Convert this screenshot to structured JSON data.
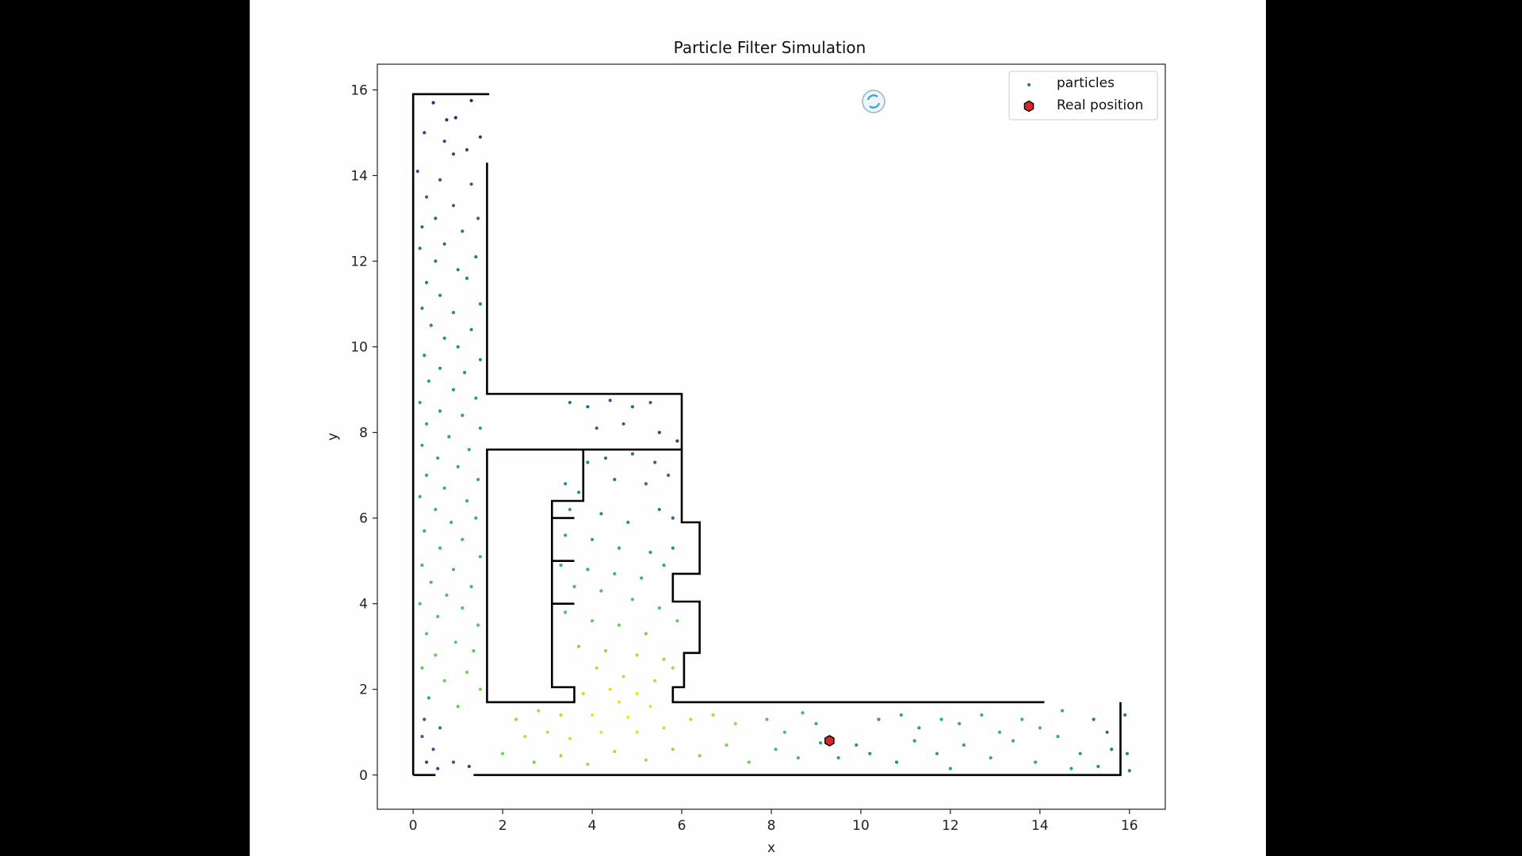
{
  "window": {
    "background": "#000000"
  },
  "colors": {
    "figure_background": "#fefefe",
    "axes_edge": "#222222",
    "walls": "#000000",
    "real_position_fill": "#d62728",
    "real_position_edge": "#000000",
    "legend_particle_marker": "#1f77b4",
    "viridis": [
      "#440154",
      "#3b528b",
      "#21918c",
      "#5ec962",
      "#fde725"
    ]
  },
  "status_icon": "loading-spinner-icon",
  "chart_data": {
    "type": "scatter",
    "title": "Particle Filter Simulation",
    "xlabel": "x",
    "ylabel": "y",
    "xlim": [
      -0.8,
      16.8
    ],
    "ylim": [
      -0.8,
      16.6
    ],
    "xticks": [
      0,
      2,
      4,
      6,
      8,
      10,
      12,
      14,
      16
    ],
    "yticks": [
      0,
      2,
      4,
      6,
      8,
      10,
      12,
      14,
      16
    ],
    "grid": false,
    "legend": {
      "placement": "top-right",
      "entries": [
        "particles",
        "Real position"
      ]
    },
    "particle_color_map": "viridis",
    "walls": [
      [
        [
          0,
          0
        ],
        [
          0,
          15.9
        ],
        [
          1.7,
          15.9
        ]
      ],
      [
        [
          0,
          0
        ],
        [
          0.5,
          0
        ]
      ],
      [
        [
          1.35,
          0
        ],
        [
          15.8,
          0
        ],
        [
          15.8,
          1.7
        ]
      ],
      [
        [
          1.65,
          14.3
        ],
        [
          1.65,
          8.9
        ],
        [
          6.0,
          8.9
        ],
        [
          6.0,
          7.6
        ],
        [
          1.65,
          7.6
        ],
        [
          1.65,
          1.7
        ],
        [
          3.6,
          1.7
        ],
        [
          3.6,
          2.05
        ],
        [
          3.1,
          2.05
        ],
        [
          3.1,
          6.4
        ],
        [
          3.8,
          6.4
        ],
        [
          3.8,
          7.6
        ]
      ],
      [
        [
          3.1,
          6.0
        ],
        [
          3.6,
          6.0
        ]
      ],
      [
        [
          3.1,
          5.0
        ],
        [
          3.6,
          5.0
        ]
      ],
      [
        [
          3.1,
          4.0
        ],
        [
          3.6,
          4.0
        ]
      ],
      [
        [
          6.0,
          7.6
        ],
        [
          6.0,
          5.9
        ],
        [
          6.4,
          5.9
        ],
        [
          6.4,
          4.7
        ],
        [
          5.8,
          4.7
        ],
        [
          5.8,
          4.05
        ],
        [
          6.4,
          4.05
        ],
        [
          6.4,
          2.85
        ],
        [
          6.05,
          2.85
        ],
        [
          6.05,
          2.05
        ],
        [
          5.8,
          2.05
        ],
        [
          5.8,
          1.7
        ],
        [
          14.1,
          1.7
        ]
      ]
    ],
    "real_position": {
      "x": 9.3,
      "y": 0.8
    },
    "particles": [
      [
        0.45,
        15.7,
        0.12
      ],
      [
        0.95,
        15.35,
        0.1
      ],
      [
        1.3,
        15.75,
        0.1
      ],
      [
        0.75,
        15.3,
        0.12
      ],
      [
        1.5,
        14.9,
        0.15
      ],
      [
        0.25,
        15.0,
        0.2
      ],
      [
        0.7,
        14.8,
        0.2
      ],
      [
        1.2,
        14.6,
        0.22
      ],
      [
        0.9,
        14.5,
        0.22
      ],
      [
        0.1,
        14.1,
        0.25
      ],
      [
        0.6,
        13.9,
        0.25
      ],
      [
        1.3,
        13.8,
        0.28
      ],
      [
        0.3,
        13.5,
        0.3
      ],
      [
        0.9,
        13.3,
        0.3
      ],
      [
        1.45,
        13.0,
        0.3
      ],
      [
        0.5,
        13.0,
        0.32
      ],
      [
        0.2,
        12.8,
        0.33
      ],
      [
        1.1,
        12.7,
        0.35
      ],
      [
        0.7,
        12.4,
        0.36
      ],
      [
        0.15,
        12.3,
        0.37
      ],
      [
        1.4,
        12.1,
        0.38
      ],
      [
        0.5,
        12.0,
        0.4
      ],
      [
        1.0,
        11.8,
        0.4
      ],
      [
        0.3,
        11.5,
        0.42
      ],
      [
        1.2,
        11.6,
        0.43
      ],
      [
        0.6,
        11.2,
        0.43
      ],
      [
        1.5,
        11.0,
        0.45
      ],
      [
        0.2,
        10.9,
        0.45
      ],
      [
        0.9,
        10.8,
        0.46
      ],
      [
        0.4,
        10.5,
        0.47
      ],
      [
        1.3,
        10.4,
        0.48
      ],
      [
        0.7,
        10.2,
        0.48
      ],
      [
        1.0,
        10.0,
        0.5
      ],
      [
        0.25,
        9.8,
        0.5
      ],
      [
        1.5,
        9.7,
        0.5
      ],
      [
        0.6,
        9.5,
        0.52
      ],
      [
        1.15,
        9.4,
        0.52
      ],
      [
        0.35,
        9.2,
        0.53
      ],
      [
        0.9,
        9.0,
        0.53
      ],
      [
        1.4,
        8.8,
        0.55
      ],
      [
        0.15,
        8.7,
        0.55
      ],
      [
        0.6,
        8.5,
        0.55
      ],
      [
        1.1,
        8.4,
        0.56
      ],
      [
        0.3,
        8.2,
        0.56
      ],
      [
        1.5,
        8.1,
        0.56
      ],
      [
        0.8,
        7.9,
        0.57
      ],
      [
        0.2,
        7.7,
        0.57
      ],
      [
        1.25,
        7.6,
        0.58
      ],
      [
        0.55,
        7.4,
        0.58
      ],
      [
        1.0,
        7.2,
        0.58
      ],
      [
        0.3,
        7.0,
        0.6
      ],
      [
        1.45,
        6.9,
        0.6
      ],
      [
        0.7,
        6.7,
        0.6
      ],
      [
        0.15,
        6.5,
        0.62
      ],
      [
        1.2,
        6.4,
        0.62
      ],
      [
        0.5,
        6.2,
        0.63
      ],
      [
        1.4,
        6.0,
        0.63
      ],
      [
        0.85,
        5.9,
        0.64
      ],
      [
        0.25,
        5.7,
        0.64
      ],
      [
        1.1,
        5.5,
        0.65
      ],
      [
        0.6,
        5.3,
        0.65
      ],
      [
        1.5,
        5.1,
        0.66
      ],
      [
        0.2,
        4.9,
        0.66
      ],
      [
        0.9,
        4.8,
        0.67
      ],
      [
        0.4,
        4.5,
        0.68
      ],
      [
        1.3,
        4.4,
        0.68
      ],
      [
        0.75,
        4.2,
        0.7
      ],
      [
        0.15,
        4.0,
        0.7
      ],
      [
        1.1,
        3.9,
        0.7
      ],
      [
        0.55,
        3.7,
        0.72
      ],
      [
        1.45,
        3.5,
        0.72
      ],
      [
        0.3,
        3.3,
        0.73
      ],
      [
        0.95,
        3.1,
        0.74
      ],
      [
        1.35,
        2.9,
        0.75
      ],
      [
        0.5,
        2.8,
        0.76
      ],
      [
        0.2,
        2.5,
        0.76
      ],
      [
        1.2,
        2.4,
        0.78
      ],
      [
        0.7,
        2.2,
        0.78
      ],
      [
        1.5,
        2.0,
        0.8
      ],
      [
        0.35,
        1.8,
        0.6
      ],
      [
        1.0,
        1.6,
        0.75
      ],
      [
        0.25,
        1.3,
        0.3
      ],
      [
        0.6,
        1.1,
        0.4
      ],
      [
        0.2,
        0.9,
        0.3
      ],
      [
        0.45,
        0.6,
        0.25
      ],
      [
        0.3,
        0.3,
        0.2
      ],
      [
        0.55,
        0.15,
        0.2
      ],
      [
        0.9,
        0.3,
        0.3
      ],
      [
        1.25,
        0.2,
        0.2
      ],
      [
        3.5,
        8.7,
        0.35
      ],
      [
        3.9,
        8.6,
        0.32
      ],
      [
        4.4,
        8.75,
        0.25
      ],
      [
        4.9,
        8.6,
        0.3
      ],
      [
        5.3,
        8.7,
        0.28
      ],
      [
        4.1,
        8.1,
        0.3
      ],
      [
        4.7,
        8.2,
        0.27
      ],
      [
        5.5,
        8.0,
        0.2
      ],
      [
        5.9,
        7.8,
        0.18
      ],
      [
        3.9,
        7.3,
        0.45
      ],
      [
        4.3,
        7.4,
        0.4
      ],
      [
        4.9,
        7.5,
        0.35
      ],
      [
        5.4,
        7.3,
        0.3
      ],
      [
        5.7,
        7.0,
        0.32
      ],
      [
        4.5,
        6.9,
        0.38
      ],
      [
        5.2,
        6.8,
        0.35
      ],
      [
        3.4,
        6.8,
        0.5
      ],
      [
        3.7,
        6.6,
        0.5
      ],
      [
        3.5,
        6.2,
        0.55
      ],
      [
        4.2,
        6.1,
        0.45
      ],
      [
        5.5,
        6.2,
        0.4
      ],
      [
        5.8,
        6.0,
        0.35
      ],
      [
        4.8,
        5.9,
        0.5
      ],
      [
        3.4,
        5.6,
        0.58
      ],
      [
        4.0,
        5.5,
        0.55
      ],
      [
        4.6,
        5.3,
        0.58
      ],
      [
        5.3,
        5.2,
        0.55
      ],
      [
        5.8,
        5.3,
        0.5
      ],
      [
        3.3,
        4.9,
        0.62
      ],
      [
        3.9,
        4.8,
        0.6
      ],
      [
        4.5,
        4.7,
        0.65
      ],
      [
        5.1,
        4.6,
        0.62
      ],
      [
        5.6,
        4.9,
        0.58
      ],
      [
        3.6,
        4.4,
        0.68
      ],
      [
        4.2,
        4.3,
        0.7
      ],
      [
        4.9,
        4.1,
        0.72
      ],
      [
        5.5,
        3.9,
        0.7
      ],
      [
        3.4,
        3.8,
        0.72
      ],
      [
        4.0,
        3.6,
        0.75
      ],
      [
        4.6,
        3.5,
        0.78
      ],
      [
        5.2,
        3.3,
        0.8
      ],
      [
        5.9,
        3.6,
        0.75
      ],
      [
        3.7,
        3.0,
        0.82
      ],
      [
        4.3,
        2.9,
        0.85
      ],
      [
        5.0,
        2.8,
        0.88
      ],
      [
        5.6,
        2.7,
        0.85
      ],
      [
        4.1,
        2.5,
        0.9
      ],
      [
        4.7,
        2.3,
        0.92
      ],
      [
        5.4,
        2.2,
        0.9
      ],
      [
        5.8,
        2.5,
        0.85
      ],
      [
        4.4,
        2.0,
        0.95
      ],
      [
        5.0,
        1.9,
        0.97
      ],
      [
        3.8,
        1.9,
        0.92
      ],
      [
        4.6,
        1.7,
        0.98
      ],
      [
        5.3,
        1.6,
        0.97
      ],
      [
        4.0,
        1.4,
        0.97
      ],
      [
        4.8,
        1.35,
        0.99
      ],
      [
        2.3,
        1.3,
        0.85
      ],
      [
        2.8,
        1.5,
        0.88
      ],
      [
        3.3,
        1.4,
        0.9
      ],
      [
        2.5,
        0.9,
        0.9
      ],
      [
        3.0,
        1.0,
        0.92
      ],
      [
        3.5,
        0.85,
        0.95
      ],
      [
        4.2,
        1.0,
        0.97
      ],
      [
        5.0,
        1.0,
        0.95
      ],
      [
        5.6,
        1.1,
        0.93
      ],
      [
        6.2,
        1.3,
        0.9
      ],
      [
        6.7,
        1.4,
        0.88
      ],
      [
        7.2,
        1.2,
        0.85
      ],
      [
        2.0,
        0.5,
        0.78
      ],
      [
        2.7,
        0.3,
        0.8
      ],
      [
        3.3,
        0.45,
        0.85
      ],
      [
        3.9,
        0.25,
        0.85
      ],
      [
        4.5,
        0.55,
        0.88
      ],
      [
        5.2,
        0.35,
        0.88
      ],
      [
        5.8,
        0.6,
        0.85
      ],
      [
        6.4,
        0.45,
        0.82
      ],
      [
        7.0,
        0.7,
        0.8
      ],
      [
        7.5,
        0.3,
        0.78
      ],
      [
        7.9,
        1.3,
        0.72
      ],
      [
        8.3,
        1.0,
        0.7
      ],
      [
        8.7,
        1.45,
        0.65
      ],
      [
        9.0,
        1.2,
        0.62
      ],
      [
        8.1,
        0.6,
        0.68
      ],
      [
        8.6,
        0.4,
        0.65
      ],
      [
        9.1,
        0.75,
        0.55
      ],
      [
        9.5,
        0.4,
        0.55
      ],
      [
        9.9,
        0.7,
        0.5
      ],
      [
        10.4,
        1.3,
        0.55
      ],
      [
        10.9,
        1.4,
        0.58
      ],
      [
        11.3,
        1.1,
        0.55
      ],
      [
        11.8,
        1.3,
        0.6
      ],
      [
        12.2,
        1.2,
        0.6
      ],
      [
        12.7,
        1.4,
        0.62
      ],
      [
        13.1,
        1.0,
        0.62
      ],
      [
        13.6,
        1.3,
        0.65
      ],
      [
        14.0,
        1.1,
        0.65
      ],
      [
        14.5,
        1.5,
        0.6
      ],
      [
        10.2,
        0.5,
        0.5
      ],
      [
        10.8,
        0.3,
        0.5
      ],
      [
        11.2,
        0.8,
        0.55
      ],
      [
        11.7,
        0.5,
        0.55
      ],
      [
        12.3,
        0.7,
        0.58
      ],
      [
        12.9,
        0.4,
        0.6
      ],
      [
        13.4,
        0.8,
        0.62
      ],
      [
        13.9,
        0.3,
        0.6
      ],
      [
        14.4,
        0.9,
        0.58
      ],
      [
        14.9,
        0.5,
        0.55
      ],
      [
        15.2,
        1.3,
        0.4
      ],
      [
        15.5,
        1.0,
        0.35
      ],
      [
        15.6,
        0.6,
        0.4
      ],
      [
        15.9,
        1.4,
        0.38
      ],
      [
        15.95,
        0.5,
        0.42
      ],
      [
        16.0,
        0.1,
        0.45
      ],
      [
        15.3,
        0.2,
        0.5
      ],
      [
        14.7,
        0.15,
        0.55
      ],
      [
        12.0,
        0.15,
        0.55
      ]
    ]
  }
}
